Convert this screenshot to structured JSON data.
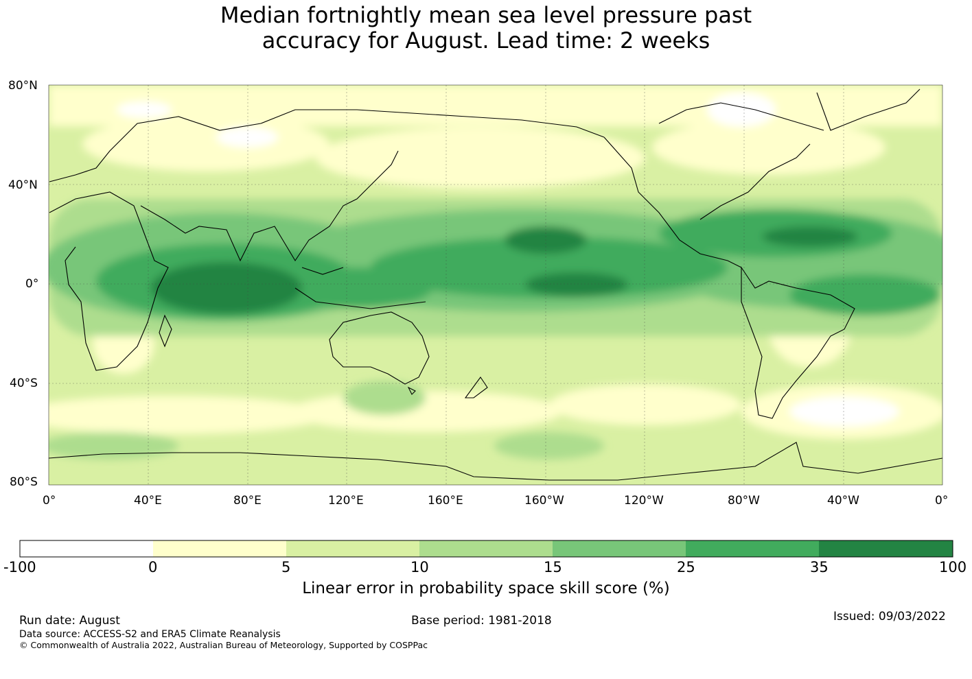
{
  "title": {
    "line1": "Median fortnightly mean sea level pressure past",
    "line2": "accuracy for August. Lead time: 2 weeks"
  },
  "map": {
    "projection": "equirectangular",
    "lat_labels": [
      "80°N",
      "40°N",
      "0°",
      "40°S",
      "80°S"
    ],
    "lon_labels": [
      "0°",
      "40°E",
      "80°E",
      "120°E",
      "160°E",
      "160°W",
      "120°W",
      "80°W",
      "40°W",
      "0°"
    ],
    "features": {
      "skill_bands": "high skill (25–35%+) along tropical belt: Indian Ocean, Maritime Continent, central/eastern Pacific, Caribbean and tropical Atlantic; low skill (<5%) in high latitudes and Southern Ocean",
      "white_regions": "negative skill over Arctic Canada, northern Russia and South Atlantic near 50°S"
    }
  },
  "colorbar": {
    "ticks": [
      "-100",
      "0",
      "5",
      "10",
      "15",
      "25",
      "35",
      "100"
    ],
    "colors": [
      "#ffffff",
      "#ffffcc",
      "#d9f0a3",
      "#addd8e",
      "#78c679",
      "#41ab5d",
      "#238443"
    ],
    "label": "Linear error in probability space skill score (%)"
  },
  "footer": {
    "run_date": "Run date: August",
    "data_source": "Data source: ACCESS-S2 and ERA5 Climate Reanalysis",
    "copyright": "© Commonwealth of Australia 2022, Australian Bureau of Meteorology, Supported by COSPPac",
    "base_period": "Base period: 1981-2018",
    "issued": "Issued: 09/03/2022"
  }
}
